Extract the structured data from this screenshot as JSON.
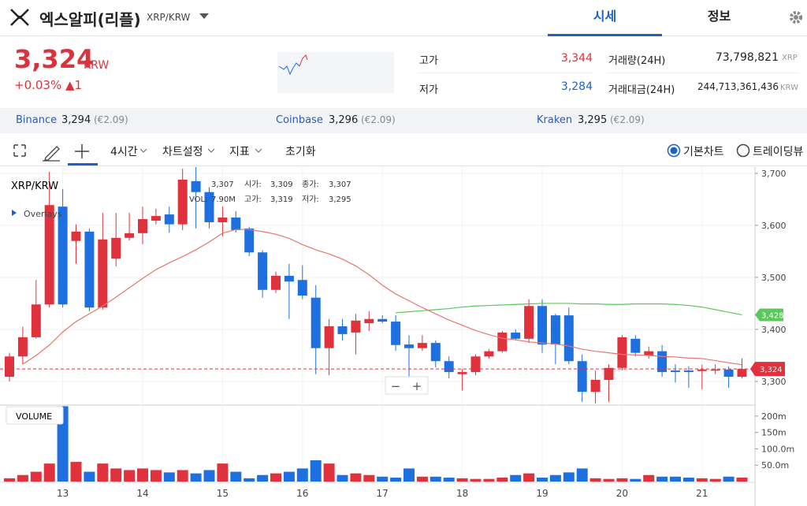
{
  "header": {
    "coin_name": "엑스알피(리플)",
    "pair": "XRP/KRW",
    "tabs": [
      "시세",
      "정보"
    ]
  },
  "price": {
    "current": "3,324",
    "unit": "KRW",
    "change": "+0.03% ▲1",
    "high_label": "고가",
    "high": "3,344",
    "low_label": "저가",
    "low": "3,284",
    "volume_label": "거래량(24H)",
    "volume": "73,798,821",
    "volume_unit": "XRP",
    "amount_label": "거래대금(24H)",
    "amount": "244,713,361,436",
    "amount_unit": "KRW"
  },
  "exchanges": [
    {
      "name": "Binance",
      "price": "3,294",
      "fx": "(€2.09)"
    },
    {
      "name": "Coinbase",
      "price": "3,296",
      "fx": "(€2.09)"
    },
    {
      "name": "Kraken",
      "price": "3,295",
      "fx": "(€2.09)"
    }
  ],
  "toolbar": {
    "interval": "4시간",
    "settings": "차트설정",
    "indicators": "지표",
    "reset": "초기화",
    "basic": "기본차트",
    "tradingview": "트레이딩뷰"
  },
  "chart_data": {
    "type": "candlestick",
    "title": "XRP/KRW",
    "overlays": "Overlays",
    "volume_title": "VOLUME",
    "info": [
      [
        "3,307",
        "시가:",
        "3,309",
        "종가:",
        "3,307"
      ],
      [
        "VOL:",
        "7.90M",
        "고가:",
        "3,319",
        "저가:",
        "3,295"
      ]
    ],
    "categories": [
      null,
      null,
      null,
      null,
      "13",
      null,
      null,
      null,
      null,
      null,
      "14",
      null,
      null,
      null,
      null,
      null,
      "15",
      null,
      null,
      null,
      null,
      null,
      "16",
      null,
      null,
      null,
      null,
      null,
      "17",
      null,
      null,
      null,
      null,
      null,
      "18",
      null,
      null,
      null,
      null,
      null,
      "19",
      null,
      null,
      null,
      null,
      null,
      "20",
      null,
      null,
      null,
      null,
      null,
      "21",
      null,
      null,
      null
    ],
    "open": [
      3309,
      3348,
      3385,
      3448,
      3636,
      3570,
      3588,
      3442,
      3536,
      3576,
      3585,
      3609,
      3621,
      3602,
      3685,
      3664,
      3606,
      3615,
      3594,
      3548,
      3476,
      3503,
      3495,
      3461,
      3364,
      3406,
      3394,
      3412,
      3420,
      3415,
      3371,
      3364,
      3374,
      3339,
      3314,
      3318,
      3348,
      3358,
      3394,
      3382,
      3445,
      3427,
      3427,
      3339,
      3280,
      3303,
      3326,
      3382,
      3350,
      3358,
      3321,
      3321,
      3320,
      3321,
      3323,
      3309
    ],
    "high": [
      3355,
      3405,
      3495,
      3703,
      3670,
      3602,
      3594,
      3624,
      3624,
      3624,
      3636,
      3632,
      3636,
      3709,
      3712,
      3673,
      3636,
      3627,
      3597,
      3552,
      3511,
      3526,
      3523,
      3485,
      3420,
      3420,
      3430,
      3435,
      3427,
      3427,
      3389,
      3389,
      3379,
      3348,
      3324,
      3352,
      3362,
      3397,
      3400,
      3458,
      3458,
      3430,
      3442,
      3352,
      3321,
      3333,
      3389,
      3389,
      3367,
      3370,
      3333,
      3329,
      3332,
      3333,
      3329,
      3344
    ],
    "low": [
      3300,
      3333,
      3382,
      3442,
      3442,
      3526,
      3435,
      3438,
      3521,
      3571,
      3564,
      3602,
      3586,
      3591,
      3594,
      3594,
      3579,
      3586,
      3541,
      3461,
      3470,
      3420,
      3458,
      3314,
      3312,
      3379,
      3352,
      3397,
      3412,
      3359,
      3309,
      3359,
      3327,
      3306,
      3283,
      3312,
      3344,
      3355,
      3379,
      3374,
      3355,
      3333,
      3333,
      3261,
      3258,
      3261,
      3321,
      3348,
      3344,
      3309,
      3298,
      3288,
      3285,
      3314,
      3288,
      3306
    ],
    "close": [
      3348,
      3385,
      3448,
      3639,
      3448,
      3588,
      3442,
      3573,
      3576,
      3585,
      3612,
      3618,
      3602,
      3688,
      3664,
      3606,
      3615,
      3591,
      3548,
      3476,
      3503,
      3492,
      3465,
      3364,
      3406,
      3391,
      3417,
      3420,
      3415,
      3370,
      3364,
      3374,
      3339,
      3318,
      3318,
      3348,
      3358,
      3394,
      3382,
      3445,
      3371,
      3371,
      3339,
      3280,
      3303,
      3326,
      3385,
      3355,
      3358,
      3318,
      3318,
      3318,
      3323,
      3323,
      3309,
      3324
    ],
    "volume": [
      10,
      20,
      30,
      55,
      230,
      60,
      30,
      55,
      40,
      35,
      40,
      35,
      28,
      35,
      25,
      35,
      55,
      30,
      10,
      20,
      25,
      30,
      40,
      65,
      55,
      20,
      25,
      20,
      15,
      12,
      40,
      15,
      15,
      12,
      10,
      8,
      8,
      12,
      20,
      25,
      12,
      20,
      28,
      40,
      10,
      8,
      10,
      8,
      20,
      15,
      15,
      12,
      10,
      8,
      15,
      12
    ],
    "series": [
      {
        "color": "#e8776b",
        "values": [
          null,
          3333,
          3350,
          3370,
          3395,
          3415,
          3430,
          3445,
          3462,
          3480,
          3498,
          3515,
          3528,
          3540,
          3553,
          3568,
          3585,
          3592,
          3592,
          3588,
          3583,
          3575,
          3563,
          3553,
          3545,
          3535,
          3522,
          3505,
          3485,
          3468,
          3455,
          3442,
          3430,
          3418,
          3408,
          3398,
          3390,
          3383,
          3380,
          3376,
          3374,
          3372,
          3368,
          3362,
          3358,
          3355,
          3352,
          3351,
          3350,
          3348,
          3347,
          3345,
          3344,
          3340,
          3336,
          3332
        ]
      },
      {
        "color": "#5cc75c",
        "values": [
          null,
          null,
          null,
          null,
          null,
          null,
          null,
          null,
          null,
          null,
          null,
          null,
          null,
          null,
          null,
          null,
          null,
          null,
          null,
          null,
          null,
          null,
          null,
          null,
          null,
          null,
          null,
          null,
          null,
          3432,
          3434,
          3436,
          3438,
          3440,
          3443,
          3445,
          3446,
          3447,
          3448,
          3449,
          3450,
          3450,
          3450,
          3449,
          3449,
          3448,
          3448,
          3449,
          3449,
          3449,
          3448,
          3446,
          3443,
          3438,
          3433,
          3428
        ],
        "end_label": {
          "value": 3428,
          "label": "3,428"
        }
      }
    ],
    "current_price": {
      "value": 3324,
      "label": "3,324"
    },
    "up_color": "#e0323c",
    "down_color": "#1e6fe0",
    "ylim": [
      3256,
      3712
    ],
    "yticks": [
      {
        "value": 3300,
        "label": "3,300"
      },
      {
        "value": 3400,
        "label": "3,400"
      },
      {
        "value": 3500,
        "label": "3,500"
      },
      {
        "value": 3600,
        "label": "3,600"
      },
      {
        "value": 3700,
        "label": "3,700"
      }
    ],
    "volume_ylim": [
      0,
      231
    ],
    "volume_ticks": [
      {
        "value": 50,
        "label": "50.0m"
      },
      {
        "value": 100,
        "label": "100.0m"
      },
      {
        "value": 150,
        "label": "150m"
      },
      {
        "value": 200,
        "label": "200m"
      }
    ],
    "zoom": [
      "−",
      "+"
    ]
  }
}
